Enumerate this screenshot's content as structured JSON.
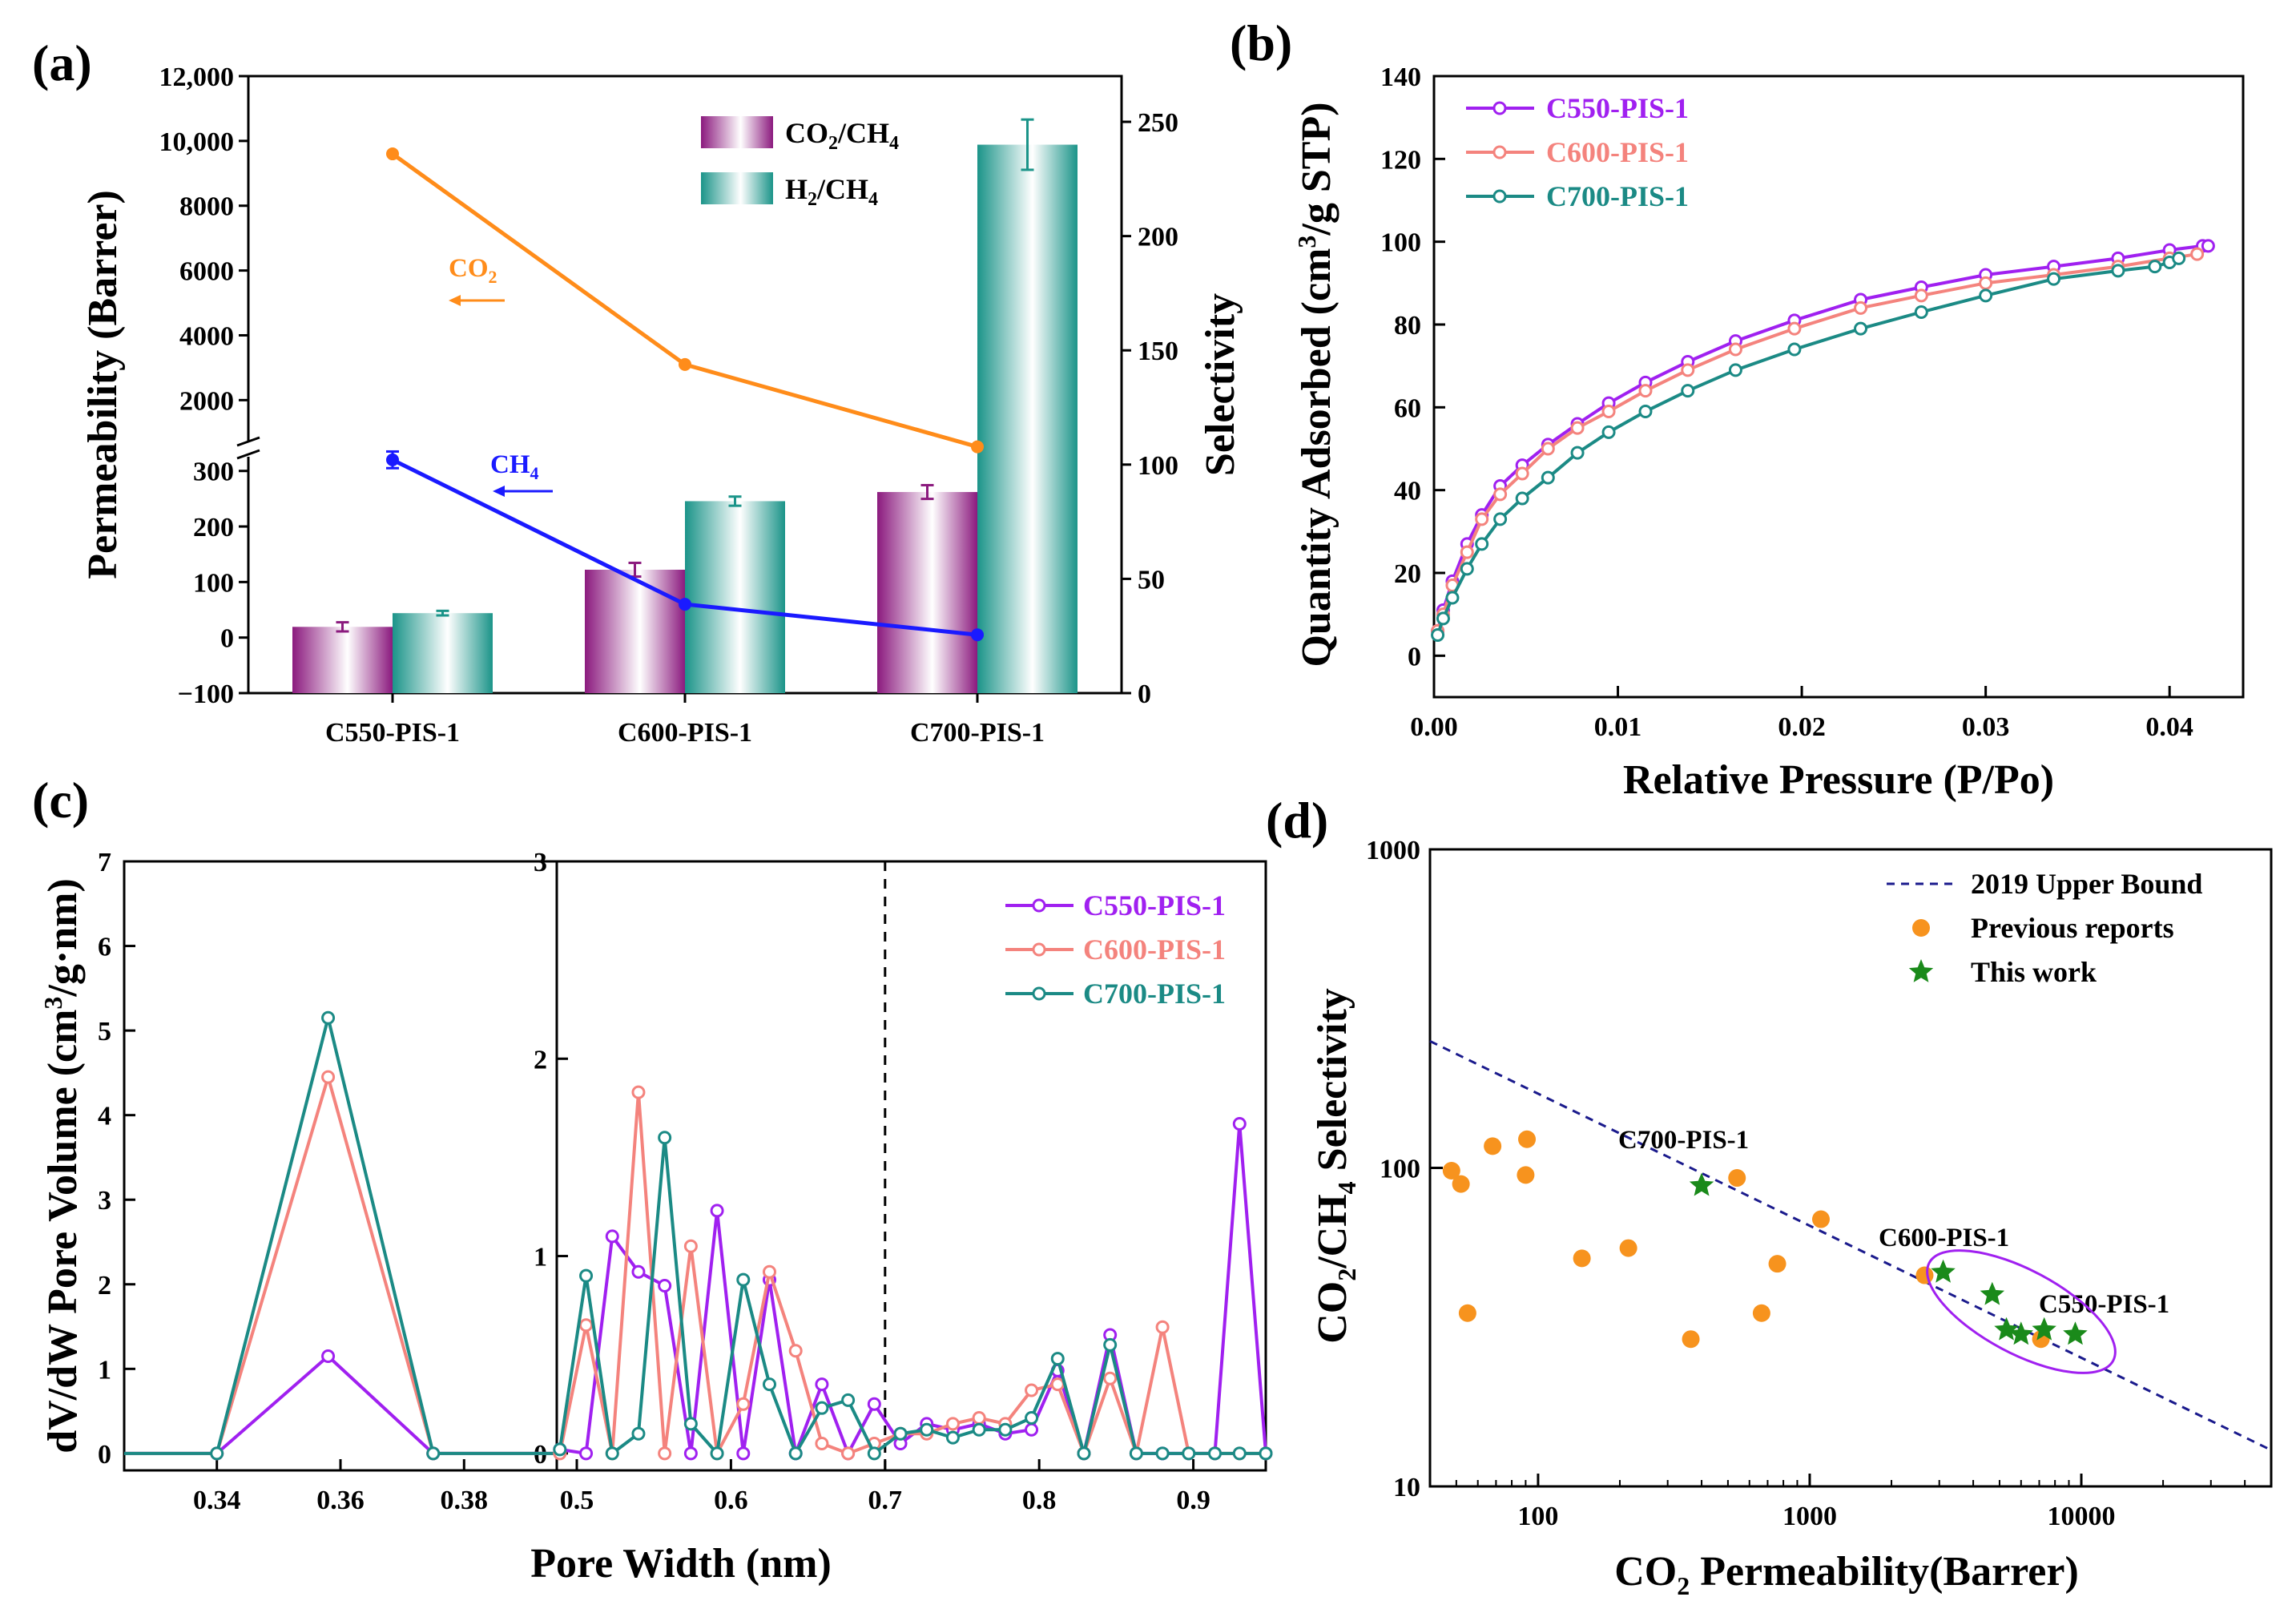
{
  "figure": {
    "panel_labels": [
      "(a)",
      "(b)",
      "(c)",
      "(d)"
    ]
  },
  "chart_data": [
    {
      "panel": "(a)",
      "type": "bar",
      "categories": [
        "C550-PIS-1",
        "C600-PIS-1",
        "C700-PIS-1"
      ],
      "y_left_label": "Permeability (Barrer)",
      "y_right_label": "Selectivity",
      "y_left_upper_ticks": [
        "2000",
        "4000",
        "6000",
        "8000",
        "10,000",
        "12,000"
      ],
      "y_left_lower_ticks": [
        "−100",
        "0",
        "100",
        "200",
        "300"
      ],
      "y_left_lower_range": [
        -100,
        340
      ],
      "y_left_upper_range": [
        500,
        12000
      ],
      "y_right_ticks": [
        "0",
        "50",
        "100",
        "150",
        "200",
        "250"
      ],
      "y_right_range": [
        0,
        270
      ],
      "bar_series": [
        {
          "name": "CO2/CH4",
          "legend_main": "CO",
          "legend_sub1": "2",
          "legend_mid": "/CH",
          "legend_sub2": "4",
          "color": "#8b1a7e",
          "values": [
            29,
            54,
            88
          ],
          "errors": [
            2,
            3,
            3
          ]
        },
        {
          "name": "H2/CH4",
          "legend_main": "H",
          "legend_sub1": "2",
          "legend_mid": "/CH",
          "legend_sub2": "4",
          "color": "#1b9489",
          "values": [
            35,
            84,
            240
          ],
          "errors": [
            1,
            2,
            11
          ]
        }
      ],
      "line_series": [
        {
          "name": "CO2",
          "label_main": "CO",
          "label_sub": "2",
          "color": "#ff8c1a",
          "values": [
            9600,
            3100,
            560
          ]
        },
        {
          "name": "CH4",
          "label_main": "CH",
          "label_sub": "4",
          "color": "#1a1aff",
          "values": [
            320,
            60,
            5
          ],
          "errors": [
            15,
            0,
            0
          ]
        }
      ]
    },
    {
      "panel": "(b)",
      "type": "line",
      "xlabel": "Relative Pressure (P/Po)",
      "ylabel_main": "Quantity Adsorbed (cm",
      "ylabel_sup": "3",
      "ylabel_end": "/g STP)",
      "xlim": [
        0,
        0.044
      ],
      "ylim": [
        -10,
        140
      ],
      "x_ticks": [
        "0.00",
        "0.01",
        "0.02",
        "0.03",
        "0.04"
      ],
      "y_ticks": [
        "0",
        "20",
        "40",
        "60",
        "80",
        "100",
        "120",
        "140"
      ],
      "series": [
        {
          "name": "C550-PIS-1",
          "color": "#a020f0",
          "x": [
            0.0002,
            0.0005,
            0.001,
            0.0018,
            0.0026,
            0.0036,
            0.0048,
            0.0062,
            0.0078,
            0.0095,
            0.0115,
            0.0138,
            0.0164,
            0.0196,
            0.0232,
            0.0265,
            0.03,
            0.0337,
            0.0372,
            0.04,
            0.0418,
            0.0421
          ],
          "y": [
            6,
            11,
            18,
            27,
            34,
            41,
            46,
            51,
            56,
            61,
            66,
            71,
            76,
            81,
            86,
            89,
            92,
            94,
            96,
            98,
            99,
            99
          ]
        },
        {
          "name": "C600-PIS-1",
          "color": "#f4837d",
          "x": [
            0.0002,
            0.0005,
            0.001,
            0.0018,
            0.0026,
            0.0036,
            0.0048,
            0.0062,
            0.0078,
            0.0095,
            0.0115,
            0.0138,
            0.0164,
            0.0196,
            0.0232,
            0.0265,
            0.03,
            0.0337,
            0.0372,
            0.04,
            0.0415
          ],
          "y": [
            6,
            10,
            17,
            25,
            33,
            39,
            44,
            50,
            55,
            59,
            64,
            69,
            74,
            79,
            84,
            87,
            90,
            92,
            94,
            96,
            97
          ]
        },
        {
          "name": "C700-PIS-1",
          "color": "#1b8a85",
          "x": [
            0.0002,
            0.0005,
            0.001,
            0.0018,
            0.0026,
            0.0036,
            0.0048,
            0.0062,
            0.0078,
            0.0095,
            0.0115,
            0.0138,
            0.0164,
            0.0196,
            0.0232,
            0.0265,
            0.03,
            0.0337,
            0.0372,
            0.0392,
            0.04,
            0.0405
          ],
          "y": [
            5,
            9,
            14,
            21,
            27,
            33,
            38,
            43,
            49,
            54,
            59,
            64,
            69,
            74,
            79,
            83,
            87,
            91,
            93,
            94,
            95,
            96
          ]
        }
      ]
    },
    {
      "panel": "(c)",
      "type": "line",
      "xlabel": "Pore Width (nm)",
      "ylabel_main": "dV/dW Pore Volume (cm",
      "ylabel_sup": "3",
      "ylabel_end": "/g·nm)",
      "left_xlim": [
        0.325,
        0.395
      ],
      "left_ylim": [
        -0.2,
        7
      ],
      "left_x_ticks": [
        "0.34",
        "0.36",
        "0.38"
      ],
      "left_y_ticks": [
        "0",
        "1",
        "2",
        "3",
        "4",
        "5",
        "6",
        "7"
      ],
      "right_xlim": [
        0.487,
        0.947
      ],
      "right_ylim": [
        -0.086,
        3
      ],
      "right_x_ticks": [
        "0.5",
        "0.6",
        "0.7",
        "0.8",
        "0.9"
      ],
      "right_y_ticks": [
        "0",
        "1",
        "2",
        "3"
      ],
      "reference_line_x": 0.7,
      "left_series": [
        {
          "name": "C550-PIS-1",
          "color": "#a020f0",
          "x": [
            0.325,
            0.34,
            0.358,
            0.375,
            0.395
          ],
          "y": [
            0,
            0,
            1.15,
            0,
            0
          ],
          "markers": [
            0.34,
            0.358,
            0.375
          ]
        },
        {
          "name": "C600-PIS-1",
          "color": "#f4837d",
          "x": [
            0.325,
            0.34,
            0.358,
            0.375,
            0.395
          ],
          "y": [
            0,
            0,
            4.45,
            0,
            0
          ],
          "markers": [
            0.34,
            0.358,
            0.375
          ]
        },
        {
          "name": "C700-PIS-1",
          "color": "#1b8a85",
          "x": [
            0.325,
            0.34,
            0.358,
            0.375,
            0.395
          ],
          "y": [
            0,
            0,
            5.15,
            0,
            0
          ],
          "markers": [
            0.34,
            0.358,
            0.375
          ]
        }
      ],
      "right_series": [
        {
          "name": "C550-PIS-1",
          "color": "#a020f0",
          "x": [
            0.489,
            0.506,
            0.523,
            0.54,
            0.557,
            0.574,
            0.591,
            0.608,
            0.625,
            0.642,
            0.659,
            0.676,
            0.693,
            0.71,
            0.727,
            0.744,
            0.761,
            0.778,
            0.795,
            0.812,
            0.829,
            0.846,
            0.863,
            0.88,
            0.897,
            0.914,
            0.93,
            0.947
          ],
          "y": [
            0.02,
            0,
            1.1,
            0.92,
            0.85,
            0,
            1.23,
            0,
            0.88,
            0,
            0.35,
            0,
            0.25,
            0.05,
            0.15,
            0.12,
            0.15,
            0.1,
            0.12,
            0.42,
            0,
            0.6,
            0,
            0,
            0,
            0,
            1.67,
            0
          ]
        },
        {
          "name": "C600-PIS-1",
          "color": "#f4837d",
          "x": [
            0.489,
            0.506,
            0.523,
            0.54,
            0.557,
            0.574,
            0.591,
            0.608,
            0.625,
            0.642,
            0.659,
            0.676,
            0.693,
            0.71,
            0.727,
            0.744,
            0.761,
            0.778,
            0.795,
            0.812,
            0.829,
            0.846,
            0.863,
            0.88,
            0.897,
            0.914,
            0.93,
            0.947
          ],
          "y": [
            0,
            0.65,
            0,
            1.83,
            0,
            1.05,
            0,
            0.25,
            0.92,
            0.52,
            0.05,
            0,
            0.05,
            0.1,
            0.1,
            0.15,
            0.18,
            0.15,
            0.32,
            0.35,
            0,
            0.38,
            0,
            0.64,
            0,
            0,
            0,
            0
          ]
        },
        {
          "name": "C700-PIS-1",
          "color": "#1b8a85",
          "x": [
            0.489,
            0.506,
            0.523,
            0.54,
            0.557,
            0.574,
            0.591,
            0.608,
            0.625,
            0.642,
            0.659,
            0.676,
            0.693,
            0.71,
            0.727,
            0.744,
            0.761,
            0.778,
            0.795,
            0.812,
            0.829,
            0.846,
            0.863,
            0.88,
            0.897,
            0.914,
            0.93,
            0.947
          ],
          "y": [
            0.02,
            0.9,
            0,
            0.1,
            1.6,
            0.15,
            0,
            0.88,
            0.35,
            0,
            0.23,
            0.27,
            0,
            0.1,
            0.12,
            0.08,
            0.12,
            0.12,
            0.18,
            0.48,
            0,
            0.55,
            0,
            0,
            0,
            0,
            0,
            0
          ]
        }
      ]
    },
    {
      "panel": "(d)",
      "type": "scatter",
      "xlabel_main": "CO",
      "xlabel_sub": "2",
      "xlabel_end": " Permeability(Barrer)",
      "ylabel_main": "CO",
      "ylabel_sub1": "2",
      "ylabel_mid": "/CH",
      "ylabel_sub2": "4",
      "ylabel_end": " Selectivity",
      "x_scale": "log",
      "y_scale": "log",
      "xlim": [
        40,
        50000
      ],
      "ylim": [
        10,
        1000
      ],
      "x_ticks": [
        "100",
        "1000",
        "10000"
      ],
      "y_ticks": [
        "10",
        "100",
        "1000"
      ],
      "legend": [
        "2019 Upper Bound",
        "Previous reports",
        "This work"
      ],
      "upper_bound": {
        "x": [
          40,
          50000
        ],
        "y": [
          250,
          13
        ],
        "color": "#1a1a8c"
      },
      "previous_reports": {
        "color": "#f7931e",
        "x": [
          48,
          52,
          55,
          68,
          90,
          91,
          145,
          215,
          365,
          540,
          665,
          760,
          1100,
          2650,
          7100
        ],
        "y": [
          98,
          89,
          35,
          117,
          95,
          123,
          52,
          56,
          29,
          93,
          35,
          50,
          69,
          46,
          29
        ]
      },
      "this_work": {
        "color": "#1a8a1a",
        "x": [
          400,
          3100,
          4700,
          5300,
          6000,
          7300,
          9500
        ],
        "y": [
          88,
          47,
          40,
          31,
          30,
          31,
          30
        ]
      },
      "annotations": [
        "C700-PIS-1",
        "C600-PIS-1",
        "C550-PIS-1"
      ]
    }
  ]
}
